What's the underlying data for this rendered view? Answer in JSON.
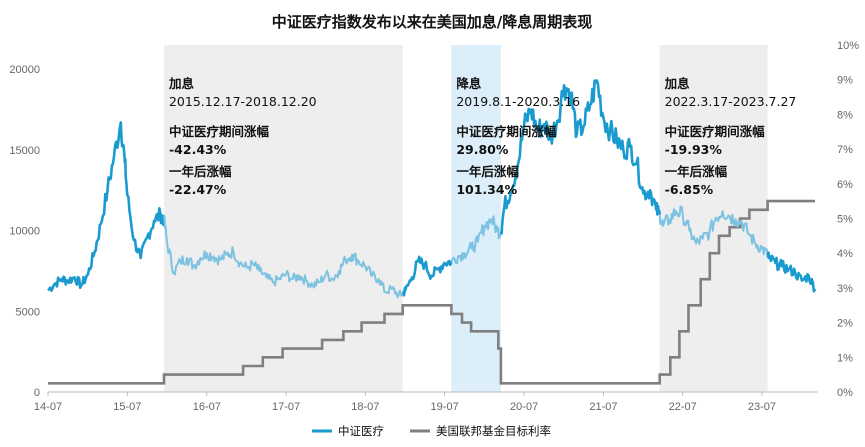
{
  "chart_data": {
    "type": "line",
    "title": "中证医疗指数发布以来在美国加息/降息周期表现",
    "x_ticks": [
      "14-07",
      "15-07",
      "16-07",
      "17-07",
      "18-07",
      "19-07",
      "20-07",
      "21-07",
      "22-07",
      "23-07"
    ],
    "y_left_ticks": [
      "0",
      "5000",
      "10000",
      "15000",
      "20000"
    ],
    "y_left_range": [
      0,
      21500
    ],
    "y_right_ticks": [
      "0%",
      "1%",
      "2%",
      "3%",
      "4%",
      "5%",
      "6%",
      "7%",
      "8%",
      "9%",
      "10%"
    ],
    "y_right_range": [
      0,
      10
    ],
    "legend_position": "bottom",
    "colors": {
      "index_bold": "#1a9bd0",
      "index_light": "#7dc2e0",
      "rate": "#7f7f7f",
      "hike_shade": "#eeeeee",
      "cut_shade": "#dbeef9"
    },
    "series": [
      {
        "name": "中证医疗",
        "axis": "left",
        "points": [
          [
            "2014-07-01",
            6300
          ],
          [
            "2014-08-01",
            6700
          ],
          [
            "2014-09-01",
            7000
          ],
          [
            "2014-10-01",
            6900
          ],
          [
            "2014-11-01",
            7100
          ],
          [
            "2014-12-01",
            6600
          ],
          [
            "2015-01-01",
            7300
          ],
          [
            "2015-02-01",
            8700
          ],
          [
            "2015-03-01",
            10400
          ],
          [
            "2015-04-01",
            12500
          ],
          [
            "2015-05-01",
            14600
          ],
          [
            "2015-06-01",
            16700
          ],
          [
            "2015-06-20",
            14200
          ],
          [
            "2015-07-01",
            12200
          ],
          [
            "2015-08-01",
            9400
          ],
          [
            "2015-09-01",
            8300
          ],
          [
            "2015-10-01",
            9600
          ],
          [
            "2015-11-01",
            10600
          ],
          [
            "2015-12-01",
            11000
          ],
          [
            "2015-12-17",
            10700
          ],
          [
            "2016-01-01",
            9200
          ],
          [
            "2016-02-01",
            7400
          ],
          [
            "2016-03-01",
            8100
          ],
          [
            "2016-04-01",
            8300
          ],
          [
            "2016-05-01",
            7800
          ],
          [
            "2016-06-01",
            8300
          ],
          [
            "2016-07-01",
            8600
          ],
          [
            "2016-08-01",
            8400
          ],
          [
            "2016-09-01",
            8200
          ],
          [
            "2016-10-01",
            8500
          ],
          [
            "2016-11-01",
            8700
          ],
          [
            "2016-12-01",
            8000
          ],
          [
            "2017-01-01",
            7700
          ],
          [
            "2017-02-01",
            7900
          ],
          [
            "2017-03-01",
            7500
          ],
          [
            "2017-04-01",
            7100
          ],
          [
            "2017-05-01",
            6800
          ],
          [
            "2017-06-01",
            7000
          ],
          [
            "2017-07-01",
            7300
          ],
          [
            "2017-08-01",
            7000
          ],
          [
            "2017-09-01",
            7200
          ],
          [
            "2017-10-01",
            6900
          ],
          [
            "2017-11-01",
            6600
          ],
          [
            "2017-12-01",
            6800
          ],
          [
            "2018-01-01",
            7300
          ],
          [
            "2018-02-01",
            7000
          ],
          [
            "2018-03-01",
            7500
          ],
          [
            "2018-04-01",
            8200
          ],
          [
            "2018-05-01",
            8500
          ],
          [
            "2018-06-01",
            8100
          ],
          [
            "2018-07-01",
            7800
          ],
          [
            "2018-08-01",
            7200
          ],
          [
            "2018-09-01",
            7000
          ],
          [
            "2018-10-01",
            6200
          ],
          [
            "2018-11-01",
            6400
          ],
          [
            "2018-12-01",
            6000
          ],
          [
            "2018-12-20",
            6100
          ],
          [
            "2019-01-01",
            6300
          ],
          [
            "2019-02-01",
            7100
          ],
          [
            "2019-03-01",
            8100
          ],
          [
            "2019-04-01",
            7900
          ],
          [
            "2019-05-01",
            7200
          ],
          [
            "2019-06-01",
            7600
          ],
          [
            "2019-07-01",
            8000
          ],
          [
            "2019-08-01",
            8100
          ],
          [
            "2019-09-01",
            8400
          ],
          [
            "2019-10-01",
            8600
          ],
          [
            "2019-11-01",
            8900
          ],
          [
            "2019-12-01",
            9300
          ],
          [
            "2020-01-01",
            10300
          ],
          [
            "2020-02-01",
            10700
          ],
          [
            "2020-03-01",
            10000
          ],
          [
            "2020-03-16",
            9900
          ],
          [
            "2020-04-01",
            11500
          ],
          [
            "2020-05-01",
            12500
          ],
          [
            "2020-06-01",
            14000
          ],
          [
            "2020-07-01",
            16500
          ],
          [
            "2020-08-01",
            17500
          ],
          [
            "2020-09-01",
            16200
          ],
          [
            "2020-10-01",
            16600
          ],
          [
            "2020-11-01",
            15800
          ],
          [
            "2020-12-01",
            16800
          ],
          [
            "2021-01-01",
            19000
          ],
          [
            "2021-02-01",
            18500
          ],
          [
            "2021-03-01",
            16000
          ],
          [
            "2021-04-01",
            16500
          ],
          [
            "2021-05-01",
            17800
          ],
          [
            "2021-06-01",
            19300
          ],
          [
            "2021-07-01",
            17000
          ],
          [
            "2021-08-01",
            16200
          ],
          [
            "2021-09-01",
            15600
          ],
          [
            "2021-10-01",
            15000
          ],
          [
            "2021-11-01",
            15200
          ],
          [
            "2021-12-01",
            14200
          ],
          [
            "2022-01-01",
            12300
          ],
          [
            "2022-02-01",
            12500
          ],
          [
            "2022-03-01",
            11300
          ],
          [
            "2022-03-17",
            11000
          ],
          [
            "2022-04-01",
            10300
          ],
          [
            "2022-05-01",
            10700
          ],
          [
            "2022-06-01",
            11200
          ],
          [
            "2022-07-01",
            11000
          ],
          [
            "2022-08-01",
            10000
          ],
          [
            "2022-09-01",
            9200
          ],
          [
            "2022-10-01",
            9500
          ],
          [
            "2022-11-01",
            9900
          ],
          [
            "2022-12-01",
            10800
          ],
          [
            "2023-01-01",
            11200
          ],
          [
            "2023-02-01",
            10900
          ],
          [
            "2023-03-01",
            10700
          ],
          [
            "2023-04-01",
            10500
          ],
          [
            "2023-05-01",
            9800
          ],
          [
            "2023-06-01",
            9200
          ],
          [
            "2023-07-01",
            8900
          ],
          [
            "2023-07-27",
            8500
          ],
          [
            "2023-08-01",
            8300
          ],
          [
            "2023-09-01",
            8000
          ],
          [
            "2023-10-01",
            7800
          ],
          [
            "2023-11-01",
            7600
          ],
          [
            "2023-12-01",
            7400
          ],
          [
            "2024-01-01",
            6900
          ],
          [
            "2024-02-01",
            7200
          ],
          [
            "2024-03-01",
            6400
          ]
        ]
      },
      {
        "name": "美国联邦基金目标利率",
        "axis": "right",
        "points": [
          [
            "2014-07-01",
            0.25
          ],
          [
            "2015-12-17",
            0.5
          ],
          [
            "2016-12-15",
            0.75
          ],
          [
            "2017-03-16",
            1.0
          ],
          [
            "2017-06-15",
            1.25
          ],
          [
            "2017-12-14",
            1.5
          ],
          [
            "2018-03-22",
            1.75
          ],
          [
            "2018-06-14",
            2.0
          ],
          [
            "2018-09-27",
            2.25
          ],
          [
            "2018-12-20",
            2.5
          ],
          [
            "2019-08-01",
            2.25
          ],
          [
            "2019-09-19",
            2.0
          ],
          [
            "2019-10-31",
            1.75
          ],
          [
            "2020-03-04",
            1.25
          ],
          [
            "2020-03-16",
            0.25
          ],
          [
            "2022-03-17",
            0.5
          ],
          [
            "2022-05-05",
            1.0
          ],
          [
            "2022-06-16",
            1.75
          ],
          [
            "2022-07-28",
            2.5
          ],
          [
            "2022-09-22",
            3.25
          ],
          [
            "2022-11-03",
            4.0
          ],
          [
            "2022-12-15",
            4.5
          ],
          [
            "2023-02-02",
            4.75
          ],
          [
            "2023-03-23",
            5.0
          ],
          [
            "2023-05-04",
            5.25
          ],
          [
            "2023-07-27",
            5.5
          ],
          [
            "2024-03-01",
            5.5
          ]
        ]
      }
    ],
    "periods": [
      {
        "kind": "hike",
        "start": "2015-12-17",
        "end": "2018-12-20",
        "label": "加息",
        "range": "2015.12.17-2018.12.20",
        "l1": "中证医疗期间涨幅",
        "v1": "-42.43%",
        "l2": "一年后涨幅",
        "v2": "-22.47%"
      },
      {
        "kind": "cut",
        "start": "2019-08-01",
        "end": "2020-03-16",
        "label": "降息",
        "range": "2019.8.1-2020.3.16",
        "l1": "中证医疗期间涨幅",
        "v1": "29.80%",
        "l2": "一年后涨幅",
        "v2": "101.34%"
      },
      {
        "kind": "hike",
        "start": "2022-03-17",
        "end": "2023-07-27",
        "label": "加息",
        "range": "2022.3.17-2023.7.27",
        "l1": "中证医疗期间涨幅",
        "v1": "-19.93%",
        "l2": "一年后涨幅",
        "v2": "-6.85%"
      }
    ]
  }
}
